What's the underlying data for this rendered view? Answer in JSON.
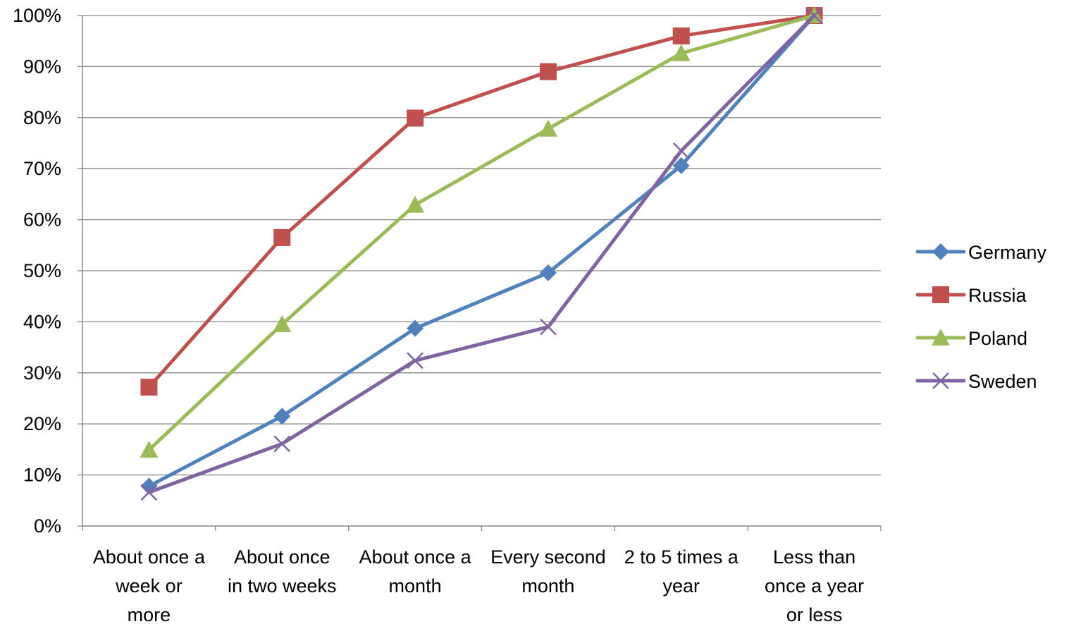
{
  "chart_data": {
    "type": "line",
    "categories": [
      [
        "About once a",
        "week or",
        "more"
      ],
      [
        "About once",
        "in two weeks"
      ],
      [
        "About once a",
        "month"
      ],
      [
        "Every second",
        "month"
      ],
      [
        "2 to 5 times a",
        "year"
      ],
      [
        "Less than",
        "once a year",
        "or less"
      ]
    ],
    "y_ticks": [
      "0%",
      "10%",
      "20%",
      "30%",
      "40%",
      "50%",
      "60%",
      "70%",
      "80%",
      "90%",
      "100%"
    ],
    "ylim": [
      0,
      100
    ],
    "grid": true,
    "legend_position": "right",
    "series": [
      {
        "name": "Germany",
        "color": "#4f81bd",
        "marker": "diamond",
        "values": [
          7.8,
          21.5,
          38.7,
          49.6,
          70.6,
          100
        ]
      },
      {
        "name": "Russia",
        "color": "#c0504d",
        "marker": "square",
        "values": [
          27.2,
          56.5,
          79.9,
          89.0,
          96.0,
          100
        ]
      },
      {
        "name": "Poland",
        "color": "#9bbb59",
        "marker": "triangle",
        "values": [
          14.9,
          39.5,
          62.9,
          77.8,
          92.6,
          100
        ]
      },
      {
        "name": "Sweden",
        "color": "#8064a2",
        "marker": "x",
        "values": [
          6.6,
          16.1,
          32.4,
          39.0,
          73.5,
          100
        ]
      }
    ]
  }
}
